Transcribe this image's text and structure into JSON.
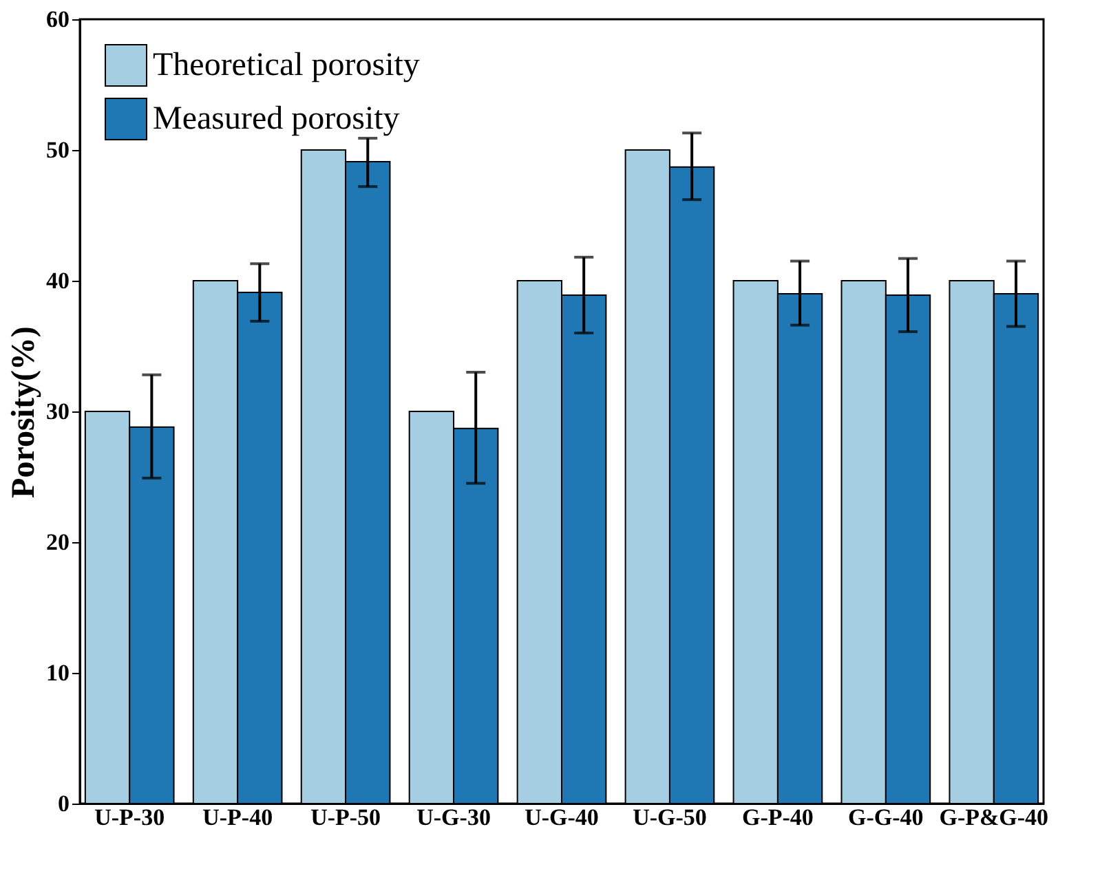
{
  "chart_data": {
    "type": "bar",
    "ylabel": "Porosity(%)",
    "categories": [
      "U-P-30",
      "U-P-40",
      "U-P-50",
      "U-G-30",
      "U-G-40",
      "U-G-50",
      "G-P-40",
      "G-G-40",
      "G-P&G-40"
    ],
    "series": [
      {
        "name": "Theoretical porosity",
        "color": "#a6cee3",
        "values": [
          30,
          40,
          50,
          30,
          40,
          50,
          40,
          40,
          40
        ]
      },
      {
        "name": "Measured porosity",
        "color": "#1f78b4",
        "values": [
          28.8,
          39.1,
          49.1,
          28.7,
          38.9,
          48.7,
          39.0,
          38.9,
          39.0
        ],
        "errors": [
          [
            24.9,
            32.8
          ],
          [
            36.9,
            41.3
          ],
          [
            47.2,
            50.9
          ],
          [
            24.5,
            33.0
          ],
          [
            36.0,
            41.8
          ],
          [
            46.2,
            51.3
          ],
          [
            36.6,
            41.5
          ],
          [
            36.1,
            41.7
          ],
          [
            36.5,
            41.5
          ]
        ]
      }
    ],
    "ylim": [
      0,
      60
    ],
    "yticks": [
      0,
      10,
      20,
      30,
      40,
      50,
      60
    ],
    "grid": false,
    "legend": "top left"
  }
}
